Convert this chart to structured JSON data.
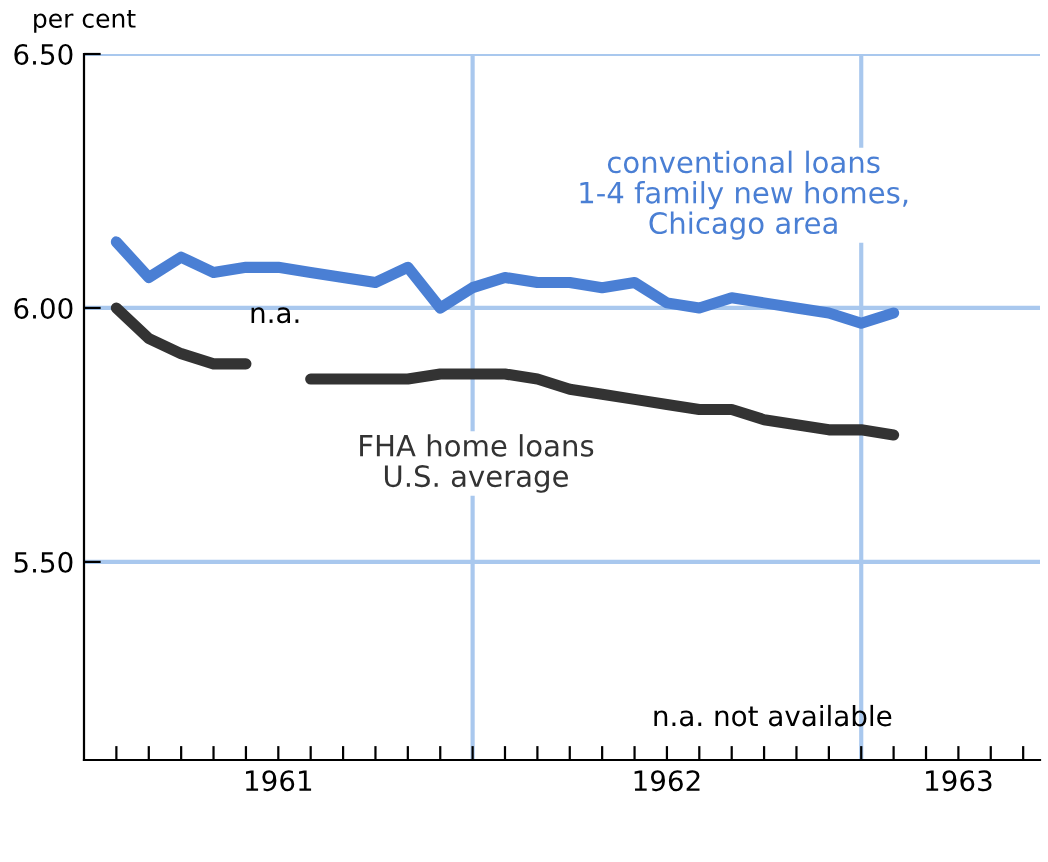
{
  "chart_data": {
    "type": "line",
    "ylabel": "per cent",
    "x": [
      1961.0833,
      1961.1667,
      1961.25,
      1961.3333,
      1961.4167,
      1961.5,
      1961.5833,
      1961.6667,
      1961.75,
      1961.8333,
      1961.9167,
      1962.0,
      1962.0833,
      1962.1667,
      1962.25,
      1962.3333,
      1962.4167,
      1962.5,
      1962.5833,
      1962.6667,
      1962.75,
      1962.8333,
      1962.9167,
      1963.0,
      1963.0833
    ],
    "series": [
      {
        "name": "conventional loans\n1-4 family new homes,\nChicago area",
        "color": "#4a7fd4",
        "values": [
          6.13,
          6.06,
          6.1,
          6.07,
          6.08,
          6.08,
          6.07,
          6.06,
          6.05,
          6.08,
          6.0,
          6.04,
          6.06,
          6.05,
          6.05,
          6.04,
          6.05,
          6.01,
          6.0,
          6.02,
          6.01,
          6.0,
          5.99,
          5.97,
          5.99
        ]
      },
      {
        "name": "FHA home loans\nU.S. average",
        "color": "#333333",
        "values": [
          6.0,
          5.94,
          5.91,
          5.89,
          5.89,
          null,
          5.86,
          5.86,
          5.86,
          5.86,
          5.87,
          5.87,
          5.87,
          5.86,
          5.84,
          5.83,
          5.82,
          5.81,
          5.8,
          5.8,
          5.78,
          5.77,
          5.76,
          5.76,
          5.75
        ]
      }
    ],
    "xlim": [
      1961.0,
      1963.46
    ],
    "ylim": [
      5.11,
      6.5
    ],
    "xticks": [
      {
        "value": 1961.0833,
        "label": null
      },
      {
        "value": 1961.1667,
        "label": null
      },
      {
        "value": 1961.25,
        "label": null
      },
      {
        "value": 1961.3333,
        "label": null
      },
      {
        "value": 1961.4167,
        "label": null
      },
      {
        "value": 1961.5,
        "label": "1961"
      },
      {
        "value": 1961.5833,
        "label": null
      },
      {
        "value": 1961.6667,
        "label": null
      },
      {
        "value": 1961.75,
        "label": null
      },
      {
        "value": 1961.8333,
        "label": null
      },
      {
        "value": 1961.9167,
        "label": null
      },
      {
        "value": 1962.0,
        "label": null
      },
      {
        "value": 1962.0833,
        "label": null
      },
      {
        "value": 1962.1667,
        "label": null
      },
      {
        "value": 1962.25,
        "label": null
      },
      {
        "value": 1962.3333,
        "label": null
      },
      {
        "value": 1962.4167,
        "label": null
      },
      {
        "value": 1962.5,
        "label": "1962"
      },
      {
        "value": 1962.5833,
        "label": null
      },
      {
        "value": 1962.6667,
        "label": null
      },
      {
        "value": 1962.75,
        "label": null
      },
      {
        "value": 1962.8333,
        "label": null
      },
      {
        "value": 1962.9167,
        "label": null
      },
      {
        "value": 1963.0,
        "label": null
      },
      {
        "value": 1963.0833,
        "label": null
      },
      {
        "value": 1963.1667,
        "label": null
      },
      {
        "value": 1963.25,
        "label": "1963"
      },
      {
        "value": 1963.3333,
        "label": null
      },
      {
        "value": 1963.4167,
        "label": null
      }
    ],
    "yticks": [
      {
        "value": 6.5,
        "label": "6.50"
      },
      {
        "value": 6.0,
        "label": "6.00"
      },
      {
        "value": 5.5,
        "label": "5.50"
      }
    ],
    "grid": "y",
    "ref_lines": [
      {
        "axis": "x",
        "value": 1962.0,
        "color": "#a9c8ee"
      },
      {
        "axis": "x",
        "value": 1963.0,
        "color": "#a9c8ee"
      }
    ],
    "annotations": [
      "n.a.",
      "n.a. not available"
    ],
    "legend": false,
    "marker": "none",
    "line_style": "solid"
  }
}
